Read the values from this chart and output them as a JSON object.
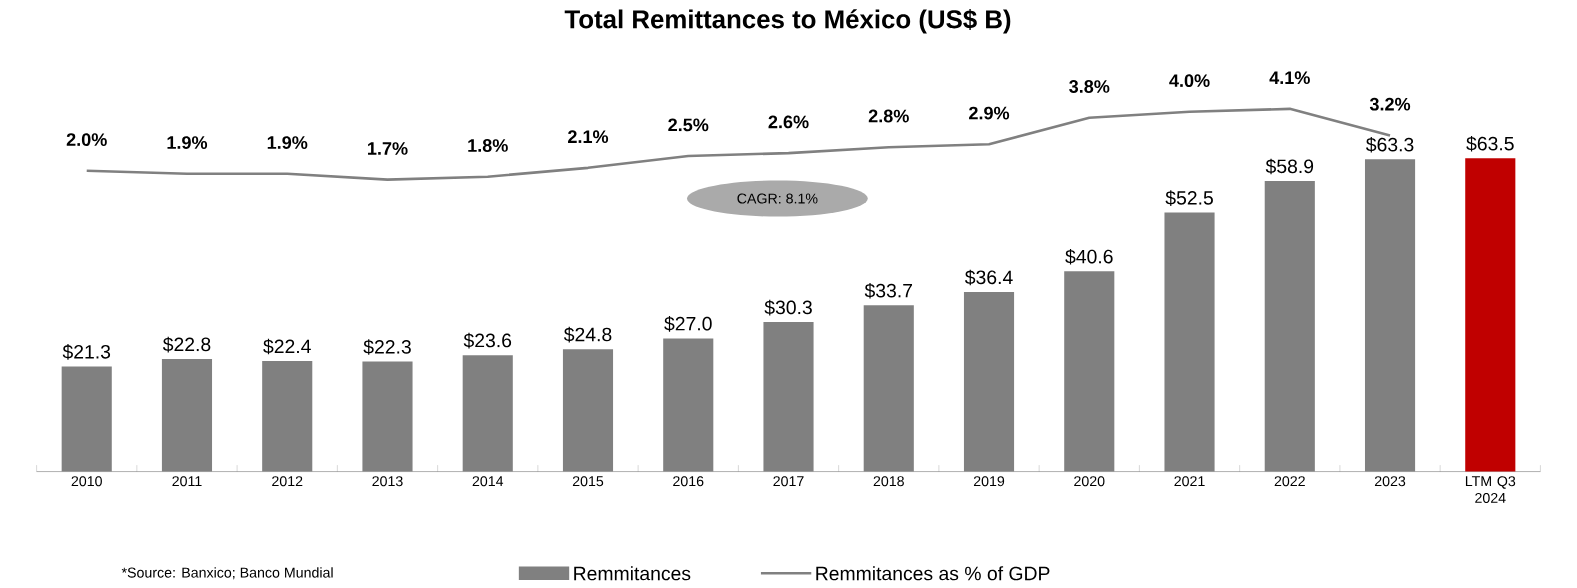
{
  "chart_data": {
    "type": "bar",
    "title": "Total Remittances to México (US$ B)",
    "categories": [
      "2010",
      "2011",
      "2012",
      "2013",
      "2014",
      "2015",
      "2016",
      "2017",
      "2018",
      "2019",
      "2020",
      "2021",
      "2022",
      "2023",
      "LTM Q3 2024"
    ],
    "series": [
      {
        "name": "Remmitances",
        "color": "#808080",
        "colors": [
          "#808080",
          "#808080",
          "#808080",
          "#808080",
          "#808080",
          "#808080",
          "#808080",
          "#808080",
          "#808080",
          "#808080",
          "#808080",
          "#808080",
          "#808080",
          "#808080",
          "#c00000"
        ],
        "values": [
          21.3,
          22.8,
          22.4,
          22.3,
          23.6,
          24.8,
          27.0,
          30.3,
          33.7,
          36.4,
          40.6,
          52.5,
          58.9,
          63.3,
          63.5
        ],
        "value_labels": [
          "$21.3",
          "$22.8",
          "$22.4",
          "$22.3",
          "$23.6",
          "$24.8",
          "$27.0",
          "$30.3",
          "$33.7",
          "$36.4",
          "$40.6",
          "$52.5",
          "$58.9",
          "$63.3",
          "$63.5"
        ]
      },
      {
        "name": "Remmitances as % of GDP",
        "type": "line",
        "axis": "y2",
        "color": "#808080",
        "values": [
          2.0,
          1.9,
          1.9,
          1.7,
          1.8,
          2.1,
          2.5,
          2.6,
          2.8,
          2.9,
          3.8,
          4.0,
          4.1,
          3.2,
          null
        ],
        "value_labels": [
          "2.0%",
          "1.9%",
          "1.9%",
          "1.7%",
          "1.8%",
          "2.1%",
          "2.5%",
          "2.6%",
          "2.8%",
          "2.9%",
          "3.8%",
          "4.0%",
          "4.1%",
          "3.2%",
          null
        ]
      }
    ],
    "tick_labels": "x",
    "grid": false,
    "legend": "bottom",
    "marker": "none",
    "line_style": "solid",
    "annotations": [
      "CAGR: 8.1%",
      "*Source: Banxico; Banco Mundial"
    ]
  }
}
